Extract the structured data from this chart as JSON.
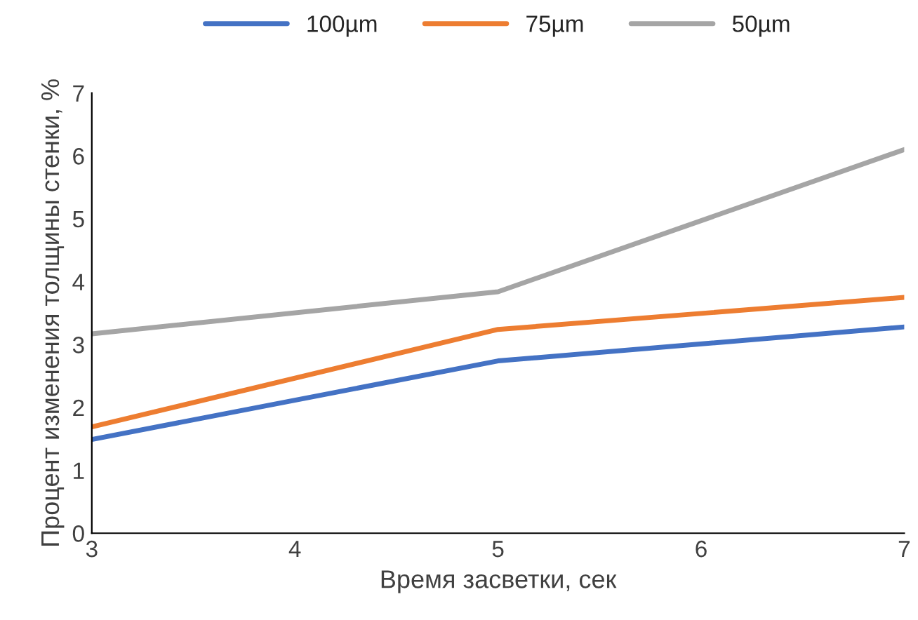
{
  "chart_data": {
    "type": "line",
    "xlabel": "Время засветки, сек",
    "ylabel": "Процент изменения толщины стенки, %",
    "x": [
      3,
      5,
      7
    ],
    "series": [
      {
        "name": "100µm",
        "color": "#4472c4",
        "values": [
          1.49,
          2.74,
          3.28
        ]
      },
      {
        "name": "75µm",
        "color": "#ed7d31",
        "values": [
          1.69,
          3.24,
          3.75
        ]
      },
      {
        "name": "50µm",
        "color": "#a5a5a5",
        "values": [
          3.17,
          3.84,
          6.1
        ]
      }
    ],
    "xlim": [
      3,
      7
    ],
    "xticks": [
      3,
      4,
      5,
      6,
      7
    ],
    "ylim": [
      0,
      7
    ],
    "yticks": [
      0,
      1,
      2,
      3,
      4,
      5,
      6,
      7
    ],
    "grid": false,
    "legend": "top",
    "marker": "none",
    "line_style": "solid"
  }
}
